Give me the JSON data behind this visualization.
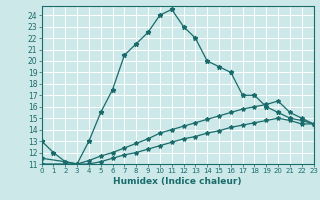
{
  "xlabel": "Humidex (Indice chaleur)",
  "background_color": "#cce8e8",
  "grid_color": "#ffffff",
  "line_color": "#1a6b6b",
  "xlim": [
    0,
    23
  ],
  "ylim": [
    11,
    24.8
  ],
  "xticks": [
    0,
    1,
    2,
    3,
    4,
    5,
    6,
    7,
    8,
    9,
    10,
    11,
    12,
    13,
    14,
    15,
    16,
    17,
    18,
    19,
    20,
    21,
    22,
    23
  ],
  "yticks": [
    11,
    12,
    13,
    14,
    15,
    16,
    17,
    18,
    19,
    20,
    21,
    22,
    23,
    24
  ],
  "series1_x": [
    0,
    1,
    2,
    3,
    4,
    5,
    6,
    7,
    8,
    9,
    10,
    11,
    12,
    13,
    14,
    15,
    16,
    17,
    18,
    19,
    20,
    21,
    22,
    23
  ],
  "series1_y": [
    13.0,
    12.0,
    11.2,
    11.0,
    13.0,
    15.5,
    17.5,
    20.5,
    21.5,
    22.5,
    24.0,
    24.5,
    23.0,
    22.0,
    20.0,
    19.5,
    19.0,
    17.0,
    17.0,
    16.0,
    15.5,
    15.0,
    14.8,
    14.5
  ],
  "series2_x": [
    0,
    2,
    3,
    4,
    5,
    6,
    7,
    8,
    9,
    10,
    11,
    12,
    13,
    14,
    15,
    16,
    17,
    18,
    19,
    20,
    21,
    22,
    23
  ],
  "series2_y": [
    11.5,
    11.2,
    11.0,
    11.3,
    11.7,
    12.0,
    12.4,
    12.8,
    13.2,
    13.7,
    14.0,
    14.3,
    14.6,
    14.9,
    15.2,
    15.5,
    15.8,
    16.0,
    16.2,
    16.5,
    15.5,
    15.0,
    14.5
  ],
  "series3_x": [
    0,
    2,
    3,
    4,
    5,
    6,
    7,
    8,
    9,
    10,
    11,
    12,
    13,
    14,
    15,
    16,
    17,
    18,
    19,
    20,
    21,
    22,
    23
  ],
  "series3_y": [
    11.0,
    11.0,
    11.0,
    11.0,
    11.2,
    11.5,
    11.8,
    12.0,
    12.3,
    12.6,
    12.9,
    13.2,
    13.4,
    13.7,
    13.9,
    14.2,
    14.4,
    14.6,
    14.8,
    15.0,
    14.8,
    14.5,
    14.5
  ]
}
